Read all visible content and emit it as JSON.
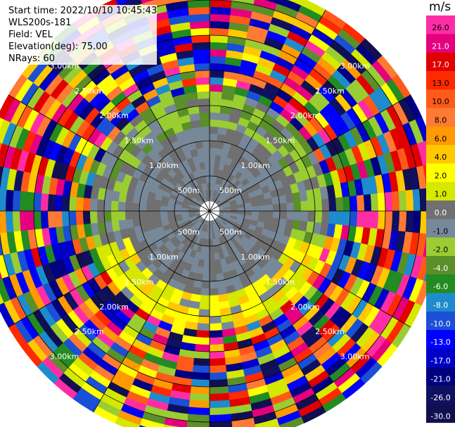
{
  "info": {
    "start_time": "Start time: 2022/10/10 10:45:43",
    "instrument": "WLS200s-181",
    "field": "Field: VEL",
    "elevation": "Elevation(deg): 75.00",
    "nrays": "NRays: 60"
  },
  "colorbar": {
    "unit": "m/s",
    "ticks": [
      "26.0",
      "21.0",
      "17.0",
      "13.0",
      "10.0",
      "8.0",
      "6.0",
      "4.0",
      "2.0",
      "1.0",
      "0.0",
      "-1.0",
      "-2.0",
      "-4.0",
      "-6.0",
      "-8.0",
      "-10.0",
      "-13.0",
      "-17.0",
      "-21.0",
      "-26.0",
      "-30.0"
    ],
    "colors": [
      "#ff2da5",
      "#e6007e",
      "#e00000",
      "#ff2a00",
      "#ff5a1a",
      "#ff7a33",
      "#ff9a00",
      "#ffc800",
      "#ffff00",
      "#d4e800",
      "#707070",
      "#778899",
      "#9acd32",
      "#5a8f29",
      "#228b22",
      "#1e8ccc",
      "#1a4fd6",
      "#0000ff",
      "#0000c8",
      "#000080",
      "#101060",
      "#101050"
    ]
  },
  "chart_data": {
    "type": "ppi",
    "field": "VEL",
    "unit": "m/s",
    "elevation_deg": 75.0,
    "n_rays": 60,
    "range_rings_km": [
      0.5,
      1.0,
      1.5,
      2.0,
      2.5,
      3.0
    ],
    "ring_labels": [
      "500m",
      "1.00km",
      "1.50km",
      "2.00km",
      "2.50km",
      "3.00km"
    ],
    "value_bins": [
      "26.0",
      "21.0",
      "17.0",
      "13.0",
      "10.0",
      "8.0",
      "6.0",
      "4.0",
      "2.0",
      "1.0",
      "0.0",
      "-1.0",
      "-2.0",
      "-4.0",
      "-6.0",
      "-8.0",
      "-10.0",
      "-13.0",
      "-17.0",
      "-21.0",
      "-26.0",
      "-30.0"
    ],
    "max_range_km": 3.0,
    "gate_rings": [
      {
        "range_km": [
          0.0,
          0.5
        ],
        "typical": "0.0"
      },
      {
        "range_km": [
          0.5,
          1.3
        ],
        "typical": "0.0 / -1.0"
      },
      {
        "range_km": [
          1.3,
          1.7
        ],
        "typical": "-2.0 (north) / 2.0 (south)"
      },
      {
        "range_km": [
          1.7,
          3.3
        ],
        "typical": "mixed, all bins"
      }
    ]
  }
}
